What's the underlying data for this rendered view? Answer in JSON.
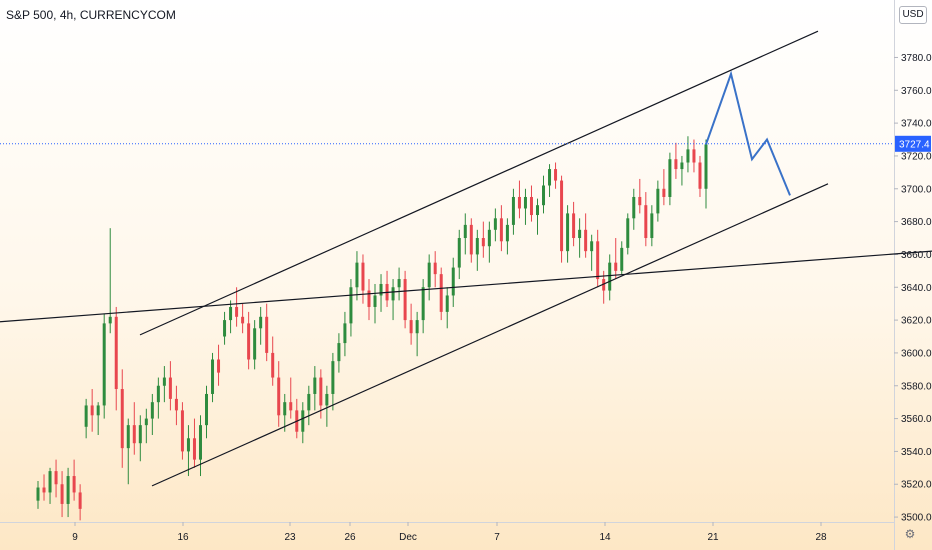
{
  "header": {
    "title": "S&P 500, 4h, CURRENCYCOM",
    "currency": "USD"
  },
  "colors": {
    "up": "#2e8b3e",
    "down": "#e8464e",
    "projection": "#3a72c8",
    "price_line": "#2962ff"
  },
  "chart_data": {
    "type": "candlestick",
    "x_ticks": [
      "9",
      "16",
      "23",
      "26",
      "Dec",
      "7",
      "14",
      "21",
      "28"
    ],
    "y_ticks": [
      3500,
      3520,
      3540,
      3560,
      3580,
      3600,
      3620,
      3640,
      3660,
      3680,
      3700,
      3720,
      3740,
      3760,
      3780
    ],
    "ylim": [
      3497,
      3815
    ],
    "last_price": "3727.4",
    "candles": [
      [
        3510,
        3522,
        3505,
        3518
      ],
      [
        3518,
        3526,
        3510,
        3515
      ],
      [
        3515,
        3530,
        3508,
        3528
      ],
      [
        3528,
        3535,
        3512,
        3520
      ],
      [
        3520,
        3528,
        3500,
        3508
      ],
      [
        3508,
        3530,
        3500,
        3525
      ],
      [
        3525,
        3535,
        3510,
        3515
      ],
      [
        3515,
        3520,
        3498,
        3505
      ],
      [
        3555,
        3572,
        3548,
        3568
      ],
      [
        3568,
        3578,
        3552,
        3562
      ],
      [
        3562,
        3570,
        3550,
        3568
      ],
      [
        3568,
        3624,
        3560,
        3618
      ],
      [
        3618,
        3676,
        3612,
        3622
      ],
      [
        3622,
        3628,
        3565,
        3578
      ],
      [
        3578,
        3590,
        3530,
        3542
      ],
      [
        3542,
        3560,
        3520,
        3556
      ],
      [
        3556,
        3570,
        3538,
        3545
      ],
      [
        3545,
        3562,
        3534,
        3556
      ],
      [
        3556,
        3566,
        3545,
        3560
      ],
      [
        3560,
        3575,
        3550,
        3570
      ],
      [
        3570,
        3585,
        3560,
        3580
      ],
      [
        3580,
        3592,
        3570,
        3585
      ],
      [
        3585,
        3595,
        3565,
        3572
      ],
      [
        3572,
        3580,
        3556,
        3565
      ],
      [
        3565,
        3570,
        3535,
        3540
      ],
      [
        3540,
        3556,
        3525,
        3548
      ],
      [
        3548,
        3560,
        3530,
        3535
      ],
      [
        3535,
        3562,
        3525,
        3556
      ],
      [
        3556,
        3580,
        3548,
        3575
      ],
      [
        3575,
        3600,
        3570,
        3596
      ],
      [
        3596,
        3605,
        3580,
        3588
      ],
      [
        3610,
        3625,
        3605,
        3620
      ],
      [
        3620,
        3632,
        3612,
        3628
      ],
      [
        3628,
        3640,
        3616,
        3622
      ],
      [
        3622,
        3630,
        3612,
        3618
      ],
      [
        3618,
        3625,
        3590,
        3596
      ],
      [
        3596,
        3620,
        3590,
        3615
      ],
      [
        3615,
        3628,
        3605,
        3622
      ],
      [
        3622,
        3630,
        3595,
        3600
      ],
      [
        3600,
        3610,
        3580,
        3585
      ],
      [
        3585,
        3595,
        3555,
        3562
      ],
      [
        3562,
        3575,
        3552,
        3570
      ],
      [
        3570,
        3585,
        3560,
        3565
      ],
      [
        3565,
        3572,
        3548,
        3552
      ],
      [
        3552,
        3570,
        3545,
        3565
      ],
      [
        3565,
        3580,
        3556,
        3575
      ],
      [
        3575,
        3592,
        3565,
        3585
      ],
      [
        3585,
        3590,
        3560,
        3568
      ],
      [
        3568,
        3580,
        3555,
        3575
      ],
      [
        3575,
        3600,
        3565,
        3595
      ],
      [
        3595,
        3612,
        3588,
        3606
      ],
      [
        3606,
        3625,
        3598,
        3618
      ],
      [
        3618,
        3645,
        3610,
        3640
      ],
      [
        3640,
        3662,
        3632,
        3655
      ],
      [
        3655,
        3660,
        3630,
        3638
      ],
      [
        3638,
        3645,
        3620,
        3628
      ],
      [
        3628,
        3642,
        3618,
        3635
      ],
      [
        3635,
        3648,
        3625,
        3642
      ],
      [
        3642,
        3650,
        3628,
        3632
      ],
      [
        3632,
        3645,
        3620,
        3640
      ],
      [
        3640,
        3652,
        3632,
        3645
      ],
      [
        3645,
        3650,
        3615,
        3620
      ],
      [
        3620,
        3630,
        3605,
        3612
      ],
      [
        3612,
        3625,
        3598,
        3620
      ],
      [
        3620,
        3645,
        3612,
        3640
      ],
      [
        3640,
        3660,
        3632,
        3655
      ],
      [
        3655,
        3662,
        3640,
        3648
      ],
      [
        3648,
        3652,
        3620,
        3625
      ],
      [
        3625,
        3640,
        3615,
        3635
      ],
      [
        3635,
        3658,
        3628,
        3652
      ],
      [
        3652,
        3675,
        3645,
        3670
      ],
      [
        3670,
        3685,
        3660,
        3678
      ],
      [
        3678,
        3682,
        3655,
        3660
      ],
      [
        3660,
        3675,
        3650,
        3670
      ],
      [
        3670,
        3680,
        3658,
        3665
      ],
      [
        3665,
        3680,
        3655,
        3675
      ],
      [
        3675,
        3688,
        3668,
        3682
      ],
      [
        3682,
        3690,
        3662,
        3668
      ],
      [
        3668,
        3682,
        3660,
        3678
      ],
      [
        3678,
        3700,
        3672,
        3695
      ],
      [
        3695,
        3705,
        3682,
        3688
      ],
      [
        3688,
        3700,
        3678,
        3695
      ],
      [
        3695,
        3702,
        3680,
        3684
      ],
      [
        3684,
        3694,
        3672,
        3690
      ],
      [
        3690,
        3708,
        3685,
        3702
      ],
      [
        3702,
        3715,
        3695,
        3712
      ],
      [
        3712,
        3716,
        3700,
        3705
      ],
      [
        3705,
        3708,
        3655,
        3662
      ],
      [
        3662,
        3690,
        3655,
        3685
      ],
      [
        3685,
        3692,
        3665,
        3670
      ],
      [
        3670,
        3682,
        3658,
        3675
      ],
      [
        3675,
        3685,
        3658,
        3662
      ],
      [
        3662,
        3672,
        3650,
        3668
      ],
      [
        3668,
        3675,
        3640,
        3645
      ],
      [
        3645,
        3650,
        3630,
        3638
      ],
      [
        3638,
        3660,
        3632,
        3655
      ],
      [
        3655,
        3670,
        3645,
        3650
      ],
      [
        3650,
        3668,
        3648,
        3664
      ],
      [
        3664,
        3685,
        3660,
        3682
      ],
      [
        3682,
        3700,
        3675,
        3695
      ],
      [
        3695,
        3706,
        3685,
        3690
      ],
      [
        3690,
        3698,
        3665,
        3670
      ],
      [
        3670,
        3690,
        3665,
        3685
      ],
      [
        3685,
        3705,
        3680,
        3700
      ],
      [
        3700,
        3712,
        3690,
        3695
      ],
      [
        3695,
        3722,
        3690,
        3718
      ],
      [
        3718,
        3728,
        3706,
        3712
      ],
      [
        3712,
        3720,
        3702,
        3716
      ],
      [
        3716,
        3732,
        3710,
        3724
      ],
      [
        3724,
        3730,
        3710,
        3716
      ],
      [
        3716,
        3720,
        3695,
        3700
      ],
      [
        3700,
        3730,
        3688,
        3727
      ]
    ],
    "trend_lines": [
      {
        "x1": 140,
        "y1": 3611,
        "x2": 818,
        "y2": 3796
      },
      {
        "x1": 152,
        "y1": 3519,
        "x2": 828,
        "y2": 3703
      },
      {
        "x1": 0,
        "y1": 3619,
        "x2": 932,
        "y2": 3662
      }
    ],
    "projection": [
      [
        706,
        3727
      ],
      [
        731,
        3770
      ],
      [
        752,
        3718
      ],
      [
        767,
        3730
      ],
      [
        790,
        3696
      ]
    ]
  }
}
